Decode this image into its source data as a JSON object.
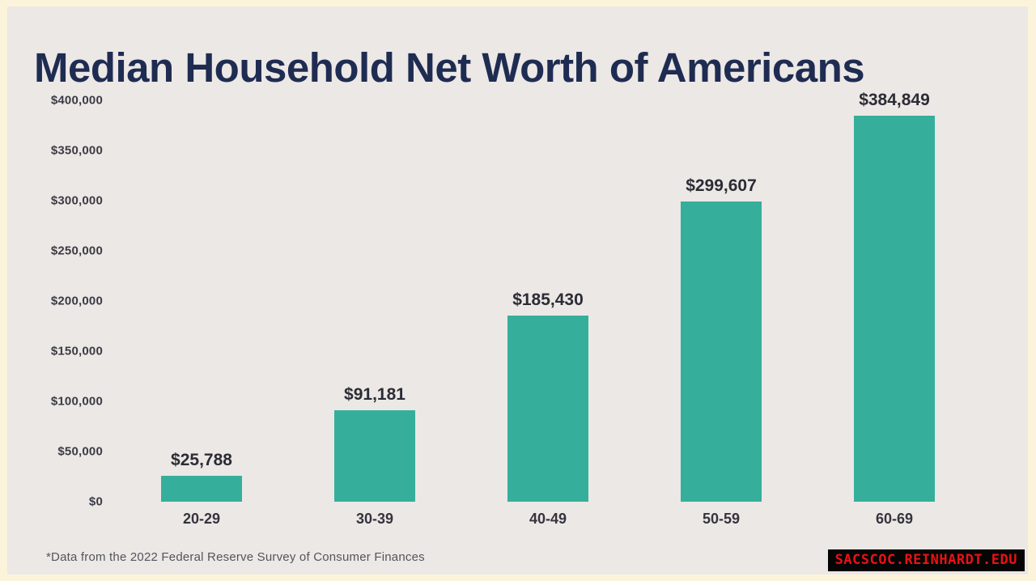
{
  "page": {
    "title": "Median Household Net Worth of Americans",
    "footnote": "*Data from the 2022 Federal Reserve Survey of Consumer Finances",
    "watermark": "SACSCOC.REINHARDT.EDU"
  },
  "colors": {
    "frame_border": "#FBF4DB",
    "panel_background": "#ECE8E5",
    "bar": "#35AF9C",
    "title_text": "#1F2C52",
    "value_label_text": "#2C2C36",
    "axis_tick_text": "#3B3B46",
    "footnote_text": "#54545C",
    "watermark_background": "#050505",
    "watermark_text": "#E91212"
  },
  "chart_data": {
    "type": "bar",
    "title": "Median Household Net Worth of Americans",
    "categories": [
      "20-29",
      "30-39",
      "40-49",
      "50-59",
      "60-69"
    ],
    "values": [
      25788,
      91181,
      185430,
      299607,
      384849
    ],
    "value_labels": [
      "$25,788",
      "$91,181",
      "$185,430",
      "$299,607",
      "$384,849"
    ],
    "y_ticks": [
      0,
      50000,
      100000,
      150000,
      200000,
      250000,
      300000,
      350000,
      400000
    ],
    "y_tick_labels": [
      "$0",
      "$50,000",
      "$100,000",
      "$150,000",
      "$200,000",
      "$250,000",
      "$300,000",
      "$350,000",
      "$400,000"
    ],
    "ylim": [
      0,
      400000
    ],
    "xlabel": "",
    "ylabel": "",
    "grid": false,
    "legend_position": "none",
    "bar_color": "#35AF9C",
    "annotation": "*Data from the 2022 Federal Reserve Survey of Consumer Finances"
  }
}
